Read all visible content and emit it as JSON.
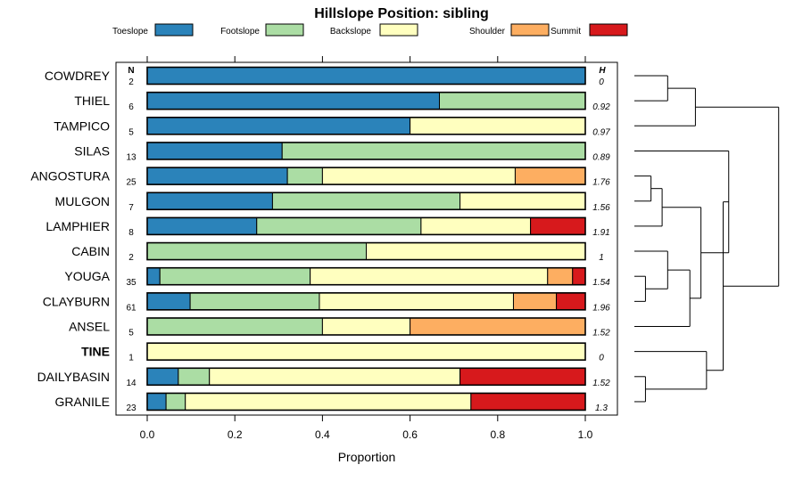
{
  "chart_data": {
    "type": "bar",
    "stacked": true,
    "orientation": "horizontal",
    "title": "Hillslope Position: sibling",
    "xlabel": "Proportion",
    "xlim": [
      0,
      1
    ],
    "x_ticks": [
      "0.0",
      "0.2",
      "0.4",
      "0.6",
      "0.8",
      "1.0"
    ],
    "n_header": "N",
    "h_header": "H",
    "legend_position": "top",
    "legend": [
      "Toeslope",
      "Footslope",
      "Backslope",
      "Shoulder",
      "Summit"
    ],
    "colors": {
      "Toeslope": "#2b83ba",
      "Footslope": "#abdda4",
      "Backslope": "#ffffbf",
      "Shoulder": "#fdae61",
      "Summit": "#d7191c"
    },
    "categories": [
      "COWDREY",
      "THIEL",
      "TAMPICO",
      "SILAS",
      "ANGOSTURA",
      "MULGON",
      "LAMPHIER",
      "CABIN",
      "YOUGA",
      "CLAYBURN",
      "ANSEL",
      "TINE",
      "DAILYBASIN",
      "GRANILE"
    ],
    "highlighted": "TINE",
    "n": [
      "2",
      "6",
      "5",
      "13",
      "25",
      "7",
      "8",
      "2",
      "35",
      "61",
      "5",
      "1",
      "14",
      "23"
    ],
    "h": [
      "0",
      "0.92",
      "0.97",
      "0.89",
      "1.76",
      "1.56",
      "1.91",
      "1",
      "1.54",
      "1.96",
      "1.52",
      "0",
      "1.52",
      "1.3"
    ],
    "series": [
      {
        "name": "Toeslope",
        "values": [
          1.0,
          0.667,
          0.6,
          0.308,
          0.32,
          0.286,
          0.25,
          0,
          0.029,
          0.098,
          0,
          0,
          0.071,
          0.043
        ]
      },
      {
        "name": "Footslope",
        "values": [
          0,
          0.333,
          0,
          0.692,
          0.08,
          0.428,
          0.375,
          0.5,
          0.343,
          0.295,
          0.4,
          0,
          0.071,
          0.044
        ]
      },
      {
        "name": "Backslope",
        "values": [
          0,
          0,
          0.4,
          0,
          0.44,
          0.286,
          0.25,
          0.5,
          0.542,
          0.443,
          0.2,
          1.0,
          0.572,
          0.652
        ]
      },
      {
        "name": "Shoulder",
        "values": [
          0,
          0,
          0,
          0,
          0.16,
          0,
          0,
          0,
          0.057,
          0.098,
          0.4,
          0,
          0,
          0
        ]
      },
      {
        "name": "Summit",
        "values": [
          0,
          0,
          0,
          0,
          0,
          0,
          0.125,
          0,
          0.029,
          0.066,
          0,
          0,
          0.286,
          0.261
        ]
      }
    ],
    "dendrogram": {
      "merges": [
        [
          "COWDREY",
          "THIEL"
        ],
        [
          "TAMPICO",
          "m1"
        ],
        [
          "ANGOSTURA",
          "MULGON"
        ],
        [
          "m3",
          "LAMPHIER"
        ],
        [
          "YOUGA",
          "CLAYBURN"
        ],
        [
          "CABIN",
          "m5"
        ],
        [
          "m6",
          "ANSEL"
        ],
        [
          "m4",
          "m7"
        ],
        [
          "SILAS",
          "m8"
        ],
        [
          "DAILYBASIN",
          "GRANILE"
        ],
        [
          "TINE",
          "m10"
        ],
        [
          "m9",
          "m11"
        ],
        [
          "m2",
          "m12"
        ]
      ],
      "heights": [
        0.12,
        0.22,
        0.06,
        0.1,
        0.04,
        0.12,
        0.2,
        0.24,
        0.34,
        0.04,
        0.26,
        0.32,
        0.52
      ]
    }
  }
}
